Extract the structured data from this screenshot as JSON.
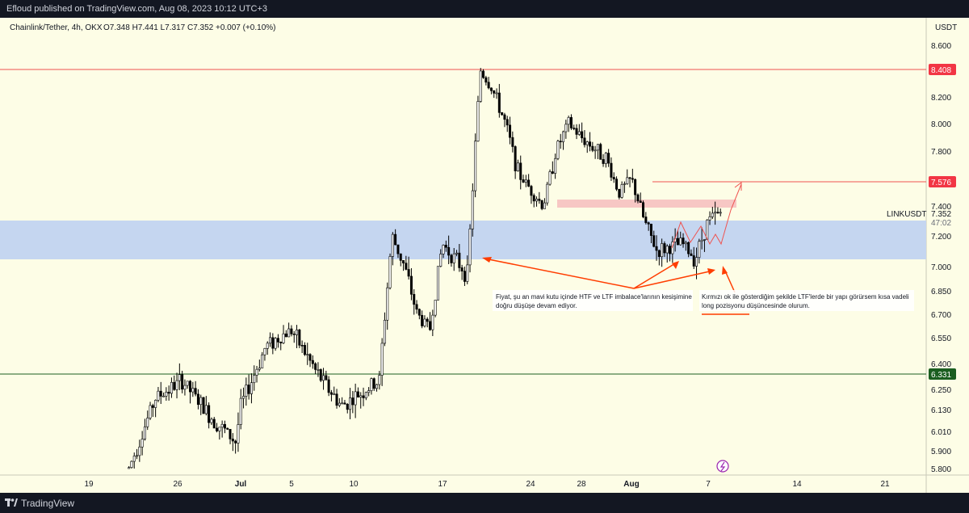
{
  "header": {
    "published_by": "Efloud published on TradingView.com, Aug 08, 2023 10:12 UTC+3"
  },
  "footer": {
    "brand": "TradingView"
  },
  "legend": {
    "symbol_line": "Chainlink/Tether, 4h, OKX",
    "ohlc_line": "O7.348  H7.441  L7.317  C7.352  +0.007 (+0.10%)"
  },
  "currency": "USDT",
  "ticker_label": "LINKUSDT",
  "price_badges": {
    "upper_resistance": "8.408",
    "target": "7.576",
    "current": "7.352",
    "countdown": "47:02",
    "lower_support": "6.331"
  },
  "annotations": {
    "left_note_line1": "Fiyat, şu an mavi kutu içinde HTF ve LTF imbalace'larının kesişimine",
    "left_note_line2": "doğru düşüşe devam ediyor.",
    "right_note_line1": "Kırmızı ok ile gösterdiğim şekilde LTF'lerde bir yapı görürsem kısa vadeli",
    "right_note_line2": "long pozisyonu düşüncesinde olurum."
  },
  "colors": {
    "background": "#fdfde6",
    "candle": "#000000",
    "blue_zone": "#c5d6f0",
    "red_zone": "#f7c7c4",
    "red_line": "#ef5350",
    "arrow": "#ff3d00",
    "green_line": "#1b5e20",
    "badge_red": "#f23645",
    "badge_green": "#1b5e20"
  },
  "chart_data": {
    "type": "candlestick",
    "title": "Chainlink/Tether, 4h, OKX",
    "y_axis_ticks": [
      8.6,
      8.4,
      8.2,
      8.0,
      7.8,
      7.6,
      7.4,
      7.2,
      7.0,
      6.85,
      6.7,
      6.55,
      6.4,
      6.25,
      6.13,
      6.01,
      5.9,
      5.8
    ],
    "y_tick_labels": [
      "8.600",
      "8.400",
      "8.200",
      "8.000",
      "7.800",
      "7.600",
      "7.400",
      "7.200",
      "7.000",
      "6.850",
      "6.700",
      "6.550",
      "6.400",
      "6.250",
      "6.130",
      "6.010",
      "5.900",
      "5.800"
    ],
    "x_tick_labels": [
      "19",
      "26",
      "Jul",
      "5",
      "10",
      "17",
      "24",
      "28",
      "Aug",
      "7",
      "14",
      "21"
    ],
    "price_path": [
      [
        "Jun 22",
        5.8
      ],
      [
        "Jun 24",
        6.2
      ],
      [
        "Jun 26",
        6.3
      ],
      [
        "Jun 28",
        6.1
      ],
      [
        "Jun 30",
        5.95
      ],
      [
        "Jul 1",
        6.15
      ],
      [
        "Jul 3",
        6.5
      ],
      [
        "Jul 5",
        6.6
      ],
      [
        "Jul 7",
        6.35
      ],
      [
        "Jul 9",
        6.15
      ],
      [
        "Jul 11",
        6.25
      ],
      [
        "Jul 12",
        6.3
      ],
      [
        "Jul 13",
        7.2
      ],
      [
        "Jul 14",
        7.0
      ],
      [
        "Jul 15",
        6.7
      ],
      [
        "Jul 16",
        6.6
      ],
      [
        "Jul 17",
        7.15
      ],
      [
        "Jul 19",
        6.95
      ],
      [
        "Jul 20",
        8.4
      ],
      [
        "Jul 21",
        8.25
      ],
      [
        "Jul 22",
        8.0
      ],
      [
        "Jul 23",
        7.65
      ],
      [
        "Jul 25",
        7.4
      ],
      [
        "Jul 26",
        7.8
      ],
      [
        "Jul 27",
        8.0
      ],
      [
        "Jul 28",
        7.9
      ],
      [
        "Jul 30",
        7.75
      ],
      [
        "Jul 31",
        7.5
      ],
      [
        "Aug 1",
        7.6
      ],
      [
        "Aug 2",
        7.3
      ],
      [
        "Aug 3",
        7.1
      ],
      [
        "Aug 5",
        7.15
      ],
      [
        "Aug 6",
        7.05
      ],
      [
        "Aug 7",
        7.3
      ],
      [
        "Aug 8",
        7.352
      ]
    ],
    "levels": {
      "resistance": 8.408,
      "target": 7.576,
      "support": 6.331
    },
    "zones": {
      "blue_zone": [
        7.05,
        7.33
      ],
      "red_zone": [
        7.39,
        7.45
      ]
    },
    "last_ohlc": {
      "open": 7.348,
      "high": 7.441,
      "low": 7.317,
      "close": 7.352
    },
    "grid": false
  }
}
